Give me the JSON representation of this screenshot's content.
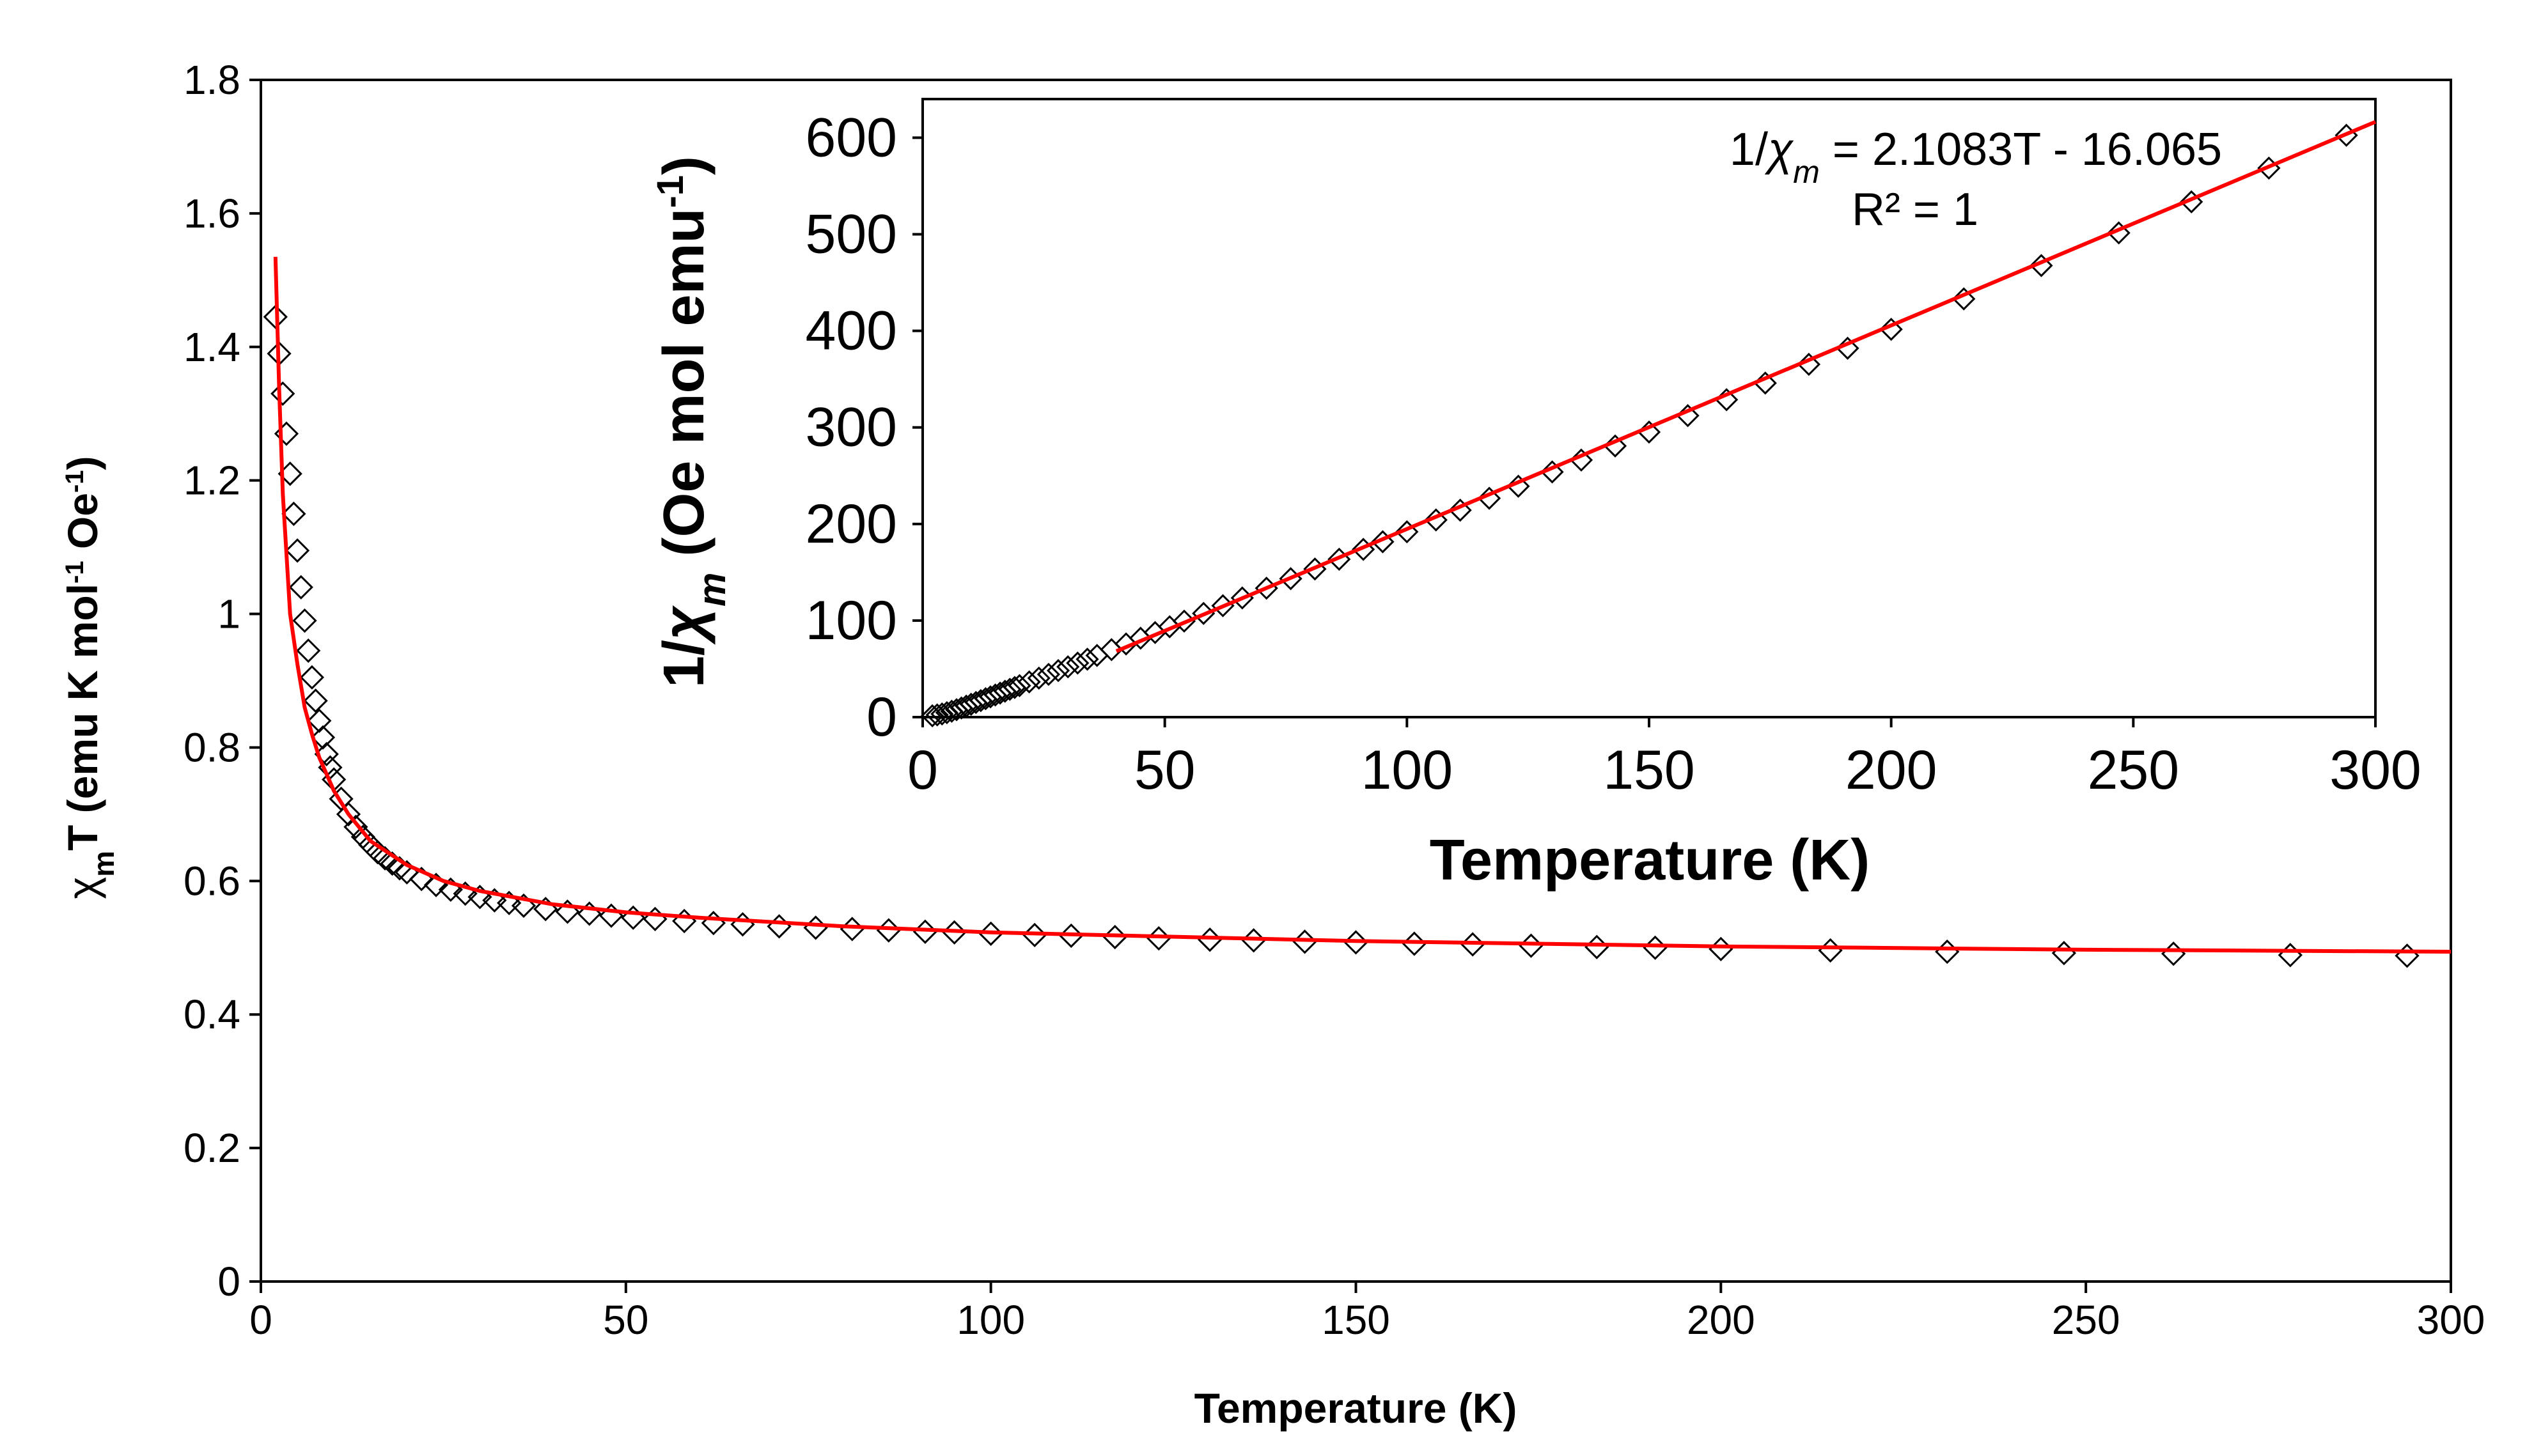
{
  "colors": {
    "fit_line": "#ff0000",
    "markers": "#000000",
    "axes": "#000000",
    "background": "#ffffff"
  },
  "chart_data": [
    {
      "id": "main",
      "type": "scatter",
      "title": "",
      "xlabel": "Temperature (K)",
      "ylabel_parts": {
        "sym": "χ",
        "sub": "m",
        "a": "T (emu K mol",
        "sup1": "-1",
        "b": " Oe",
        "sup2": "-1",
        "c": ")"
      },
      "xlim": [
        0,
        300
      ],
      "ylim": [
        0,
        1.8
      ],
      "xticks": [
        0,
        50,
        100,
        150,
        200,
        250,
        300
      ],
      "xtick_labels": [
        "0",
        "50",
        "100",
        "150",
        "200",
        "250",
        "300"
      ],
      "yticks": [
        0,
        0.2,
        0.4,
        0.6,
        0.8,
        1.0,
        1.2,
        1.4,
        1.6,
        1.8
      ],
      "ytick_labels": [
        "0",
        "0.2",
        "0.4",
        "0.6",
        "0.8",
        "1",
        "1.2",
        "1.4",
        "1.6",
        "1.8"
      ],
      "grid": false,
      "series": [
        {
          "name": "experimental",
          "style": "diamond-markers",
          "x": [
            2,
            2.5,
            3,
            3.5,
            4,
            4.5,
            5,
            5.5,
            6,
            6.5,
            7,
            7.5,
            8,
            8.5,
            9,
            9.5,
            10,
            11,
            12,
            13,
            14,
            15,
            16,
            17,
            18,
            19,
            20,
            22,
            24,
            26,
            28,
            30,
            32,
            34,
            36,
            39,
            42,
            45,
            48,
            51,
            54,
            58,
            62,
            66,
            71,
            76,
            81,
            86,
            91,
            95,
            100,
            106,
            111,
            117,
            123,
            130,
            136,
            143,
            150,
            158,
            166,
            174,
            183,
            191,
            200,
            215,
            231,
            247,
            262,
            278,
            294
          ],
          "y": [
            1.445,
            1.39,
            1.33,
            1.27,
            1.21,
            1.15,
            1.095,
            1.04,
            0.99,
            0.945,
            0.905,
            0.87,
            0.84,
            0.815,
            0.79,
            0.77,
            0.752,
            0.723,
            0.7,
            0.681,
            0.666,
            0.654,
            0.643,
            0.634,
            0.626,
            0.619,
            0.613,
            0.603,
            0.594,
            0.587,
            0.581,
            0.576,
            0.571,
            0.567,
            0.563,
            0.558,
            0.554,
            0.551,
            0.548,
            0.545,
            0.543,
            0.54,
            0.537,
            0.535,
            0.532,
            0.53,
            0.528,
            0.526,
            0.524,
            0.523,
            0.521,
            0.519,
            0.518,
            0.516,
            0.514,
            0.512,
            0.511,
            0.509,
            0.508,
            0.506,
            0.505,
            0.503,
            0.501,
            0.5,
            0.498,
            0.496,
            0.494,
            0.492,
            0.491,
            0.489,
            0.488
          ]
        },
        {
          "name": "fit",
          "style": "red-line",
          "x": [
            2,
            2.5,
            3,
            4,
            5,
            6,
            7,
            8,
            10,
            12,
            15,
            20,
            25,
            30,
            40,
            50,
            60,
            80,
            100,
            150,
            200,
            250,
            300
          ],
          "y": [
            1.535,
            1.34,
            1.18,
            1.0,
            0.925,
            0.86,
            0.82,
            0.785,
            0.735,
            0.7,
            0.66,
            0.624,
            0.6,
            0.585,
            0.565,
            0.553,
            0.545,
            0.532,
            0.523,
            0.51,
            0.502,
            0.497,
            0.494
          ]
        }
      ]
    },
    {
      "id": "inset",
      "type": "scatter",
      "title": "",
      "xlabel": "Temperature (K)",
      "ylabel_parts": {
        "a": "1/",
        "sym": "χ",
        "sub": "m",
        "b": " (Oe mol emu",
        "sup": "-1",
        "c": ")"
      },
      "xlim": [
        0,
        300
      ],
      "ylim": [
        0,
        640
      ],
      "xticks": [
        0,
        50,
        100,
        150,
        200,
        250,
        300
      ],
      "xtick_labels": [
        "0",
        "50",
        "100",
        "150",
        "200",
        "250",
        "300"
      ],
      "yticks": [
        0,
        100,
        200,
        300,
        400,
        500,
        600
      ],
      "ytick_labels": [
        "0",
        "100",
        "200",
        "300",
        "400",
        "500",
        "600"
      ],
      "grid": false,
      "annotation": {
        "equation_lhs": "1/",
        "sym": "χ",
        "sub": "m",
        "equation_rhs": " = 2.1083T - 16.065",
        "r_squared": "R² = 1"
      },
      "series": [
        {
          "name": "experimental",
          "style": "diamond-markers",
          "x": [
            2,
            3,
            4,
            5,
            6,
            7,
            8,
            9,
            10,
            11,
            12,
            13,
            14,
            15,
            16,
            17,
            18,
            19,
            20,
            22,
            24,
            26,
            28,
            30,
            32,
            34,
            36,
            39,
            42,
            45,
            48,
            51,
            54,
            58,
            62,
            66,
            71,
            76,
            81,
            86,
            91,
            95,
            100,
            106,
            111,
            117,
            123,
            130,
            136,
            143,
            150,
            158,
            166,
            174,
            183,
            191,
            200,
            215,
            231,
            247,
            262,
            278,
            294
          ],
          "y": [
            1.4,
            2.3,
            3.3,
            4.6,
            6.1,
            7.7,
            9.5,
            11.4,
            13.3,
            15.2,
            17.1,
            19.1,
            21.0,
            22.9,
            24.9,
            26.8,
            28.8,
            30.7,
            32.6,
            36.5,
            40.4,
            44.3,
            48.2,
            52.1,
            56.0,
            60.0,
            63.9,
            69.9,
            75.8,
            81.7,
            87.6,
            93.6,
            99.4,
            107.4,
            115.4,
            123.4,
            133.5,
            143.4,
            153.4,
            163.5,
            173.7,
            181.6,
            191.9,
            204.2,
            214.3,
            226.6,
            239.1,
            253.9,
            266.2,
            280.8,
            295.2,
            312.2,
            328.7,
            345.9,
            365.3,
            382.0,
            401.6,
            433.1,
            467.6,
            501.4,
            533.6,
            568.5,
            602.5
          ]
        },
        {
          "name": "fit",
          "style": "red-line",
          "x": [
            40,
            300
          ],
          "y": [
            68.27,
            616.43
          ]
        }
      ]
    }
  ]
}
